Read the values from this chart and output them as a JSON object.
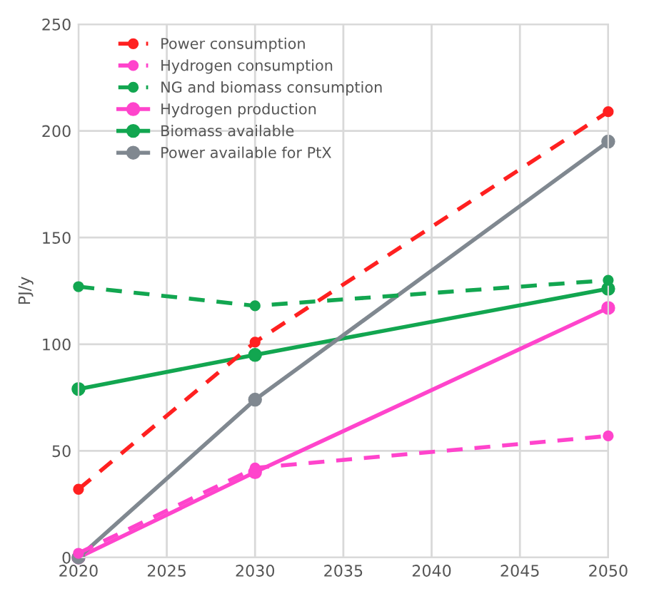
{
  "chart_data": {
    "type": "line",
    "ylabel": "PJ/y",
    "x": [
      2020,
      2030,
      2050
    ],
    "series": [
      {
        "name": "Power consumption",
        "color": "#ff2020",
        "line_style": "dashed",
        "values": [
          32,
          101,
          209
        ]
      },
      {
        "name": "Hydrogen consumption",
        "color": "#ff44cc",
        "line_style": "dashed",
        "values": [
          2,
          42,
          57
        ]
      },
      {
        "name": "NG and biomass consumption",
        "color": "#12a650",
        "line_style": "dashed",
        "values": [
          127,
          118,
          130
        ]
      },
      {
        "name": "Hydrogen production",
        "color": "#ff44cc",
        "line_style": "solid",
        "values": [
          0,
          40,
          117
        ]
      },
      {
        "name": "Biomass available",
        "color": "#12a650",
        "line_style": "solid",
        "values": [
          79,
          95,
          126
        ]
      },
      {
        "name": "Power available for PtX",
        "color": "#808890",
        "line_style": "solid",
        "values": [
          0,
          74,
          195
        ]
      }
    ],
    "xlim": [
      2020,
      2050
    ],
    "xticks": [
      2020,
      2025,
      2030,
      2035,
      2040,
      2045,
      2050
    ],
    "ylim": [
      0,
      250
    ],
    "yticks": [
      0,
      50,
      100,
      150,
      200,
      250
    ],
    "grid": true,
    "legend": "top left",
    "marker": "circle"
  }
}
